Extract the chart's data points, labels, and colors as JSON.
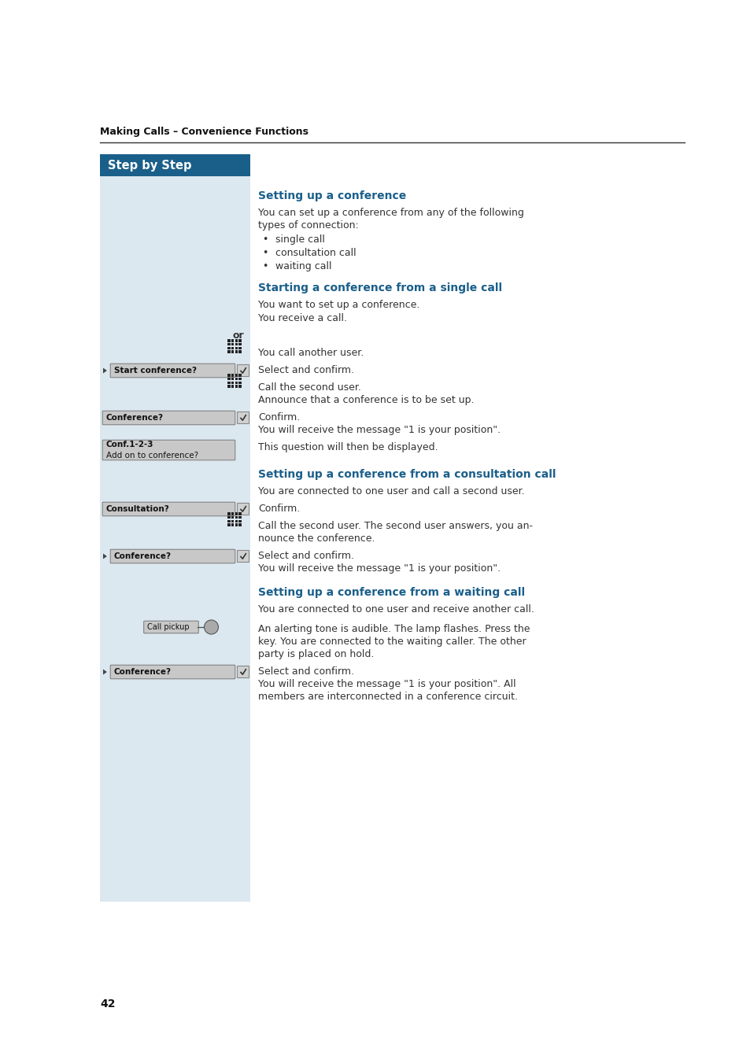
{
  "page_bg": "#ffffff",
  "left_panel_bg": "#dce8f0",
  "header_bg": "#1a5f8a",
  "header_text": "Step by Step",
  "header_text_color": "#ffffff",
  "page_label": "Making Calls – Convenience Functions",
  "page_number": "42",
  "section1_title": "Setting up a conference",
  "section1_body1": "You can set up a conference from any of the following",
  "section1_body2": "types of connection:",
  "section1_bullets": [
    "single call",
    "consultation call",
    "waiting call"
  ],
  "section2_title": "Starting a conference from a single call",
  "section2_line1": "You want to set up a conference.",
  "section2_line2": "You receive a call.",
  "section3_title": "Setting up a conference from a consultation call",
  "section3_line1": "You are connected to one user and call a second user.",
  "section4_title": "Setting up a conference from a waiting call",
  "section4_line1": "You are connected to one user and receive another call.",
  "blue_color": "#1a5f8a",
  "text_color": "#111111",
  "body_color": "#333333",
  "gray_btn": "#c8c8c8",
  "gray_btn_border": "#888888"
}
